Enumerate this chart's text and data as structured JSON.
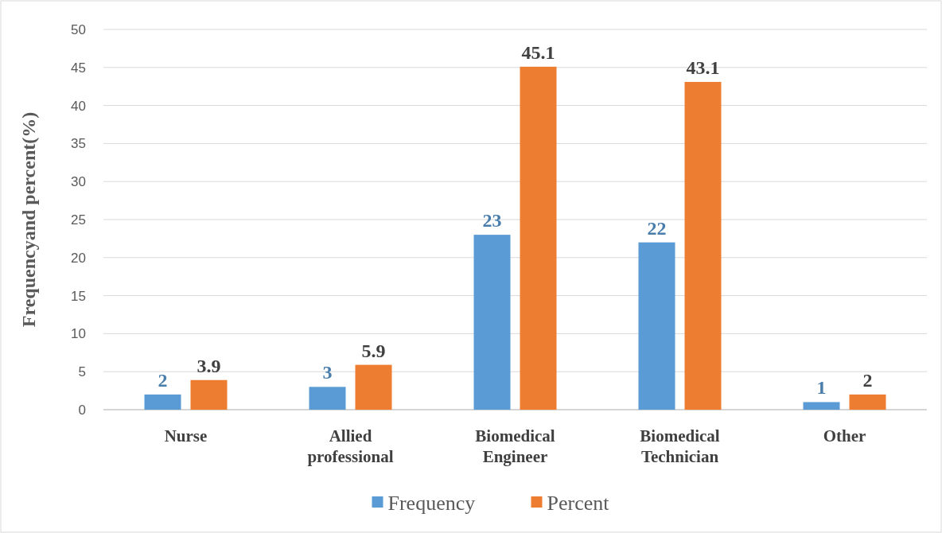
{
  "chart_data": {
    "type": "bar",
    "ylabel": "Frequencyand percent(%)",
    "categories": [
      "Nurse",
      "Allied professional",
      "Biomedical Engineer",
      "Biomedical Technician",
      "Other"
    ],
    "series": [
      {
        "name": "Frequency",
        "color": "#5b9bd5",
        "values": [
          2,
          3,
          23,
          22,
          1
        ]
      },
      {
        "name": "Percent",
        "color": "#ed7d31",
        "values": [
          3.9,
          5.9,
          45.1,
          43.1,
          2
        ]
      }
    ],
    "ylim": [
      0,
      50
    ],
    "yticks": [
      0,
      5,
      10,
      15,
      20,
      25,
      30,
      35,
      40,
      45,
      50
    ],
    "grid": "y",
    "legend": "bottom",
    "data_labels": true
  }
}
